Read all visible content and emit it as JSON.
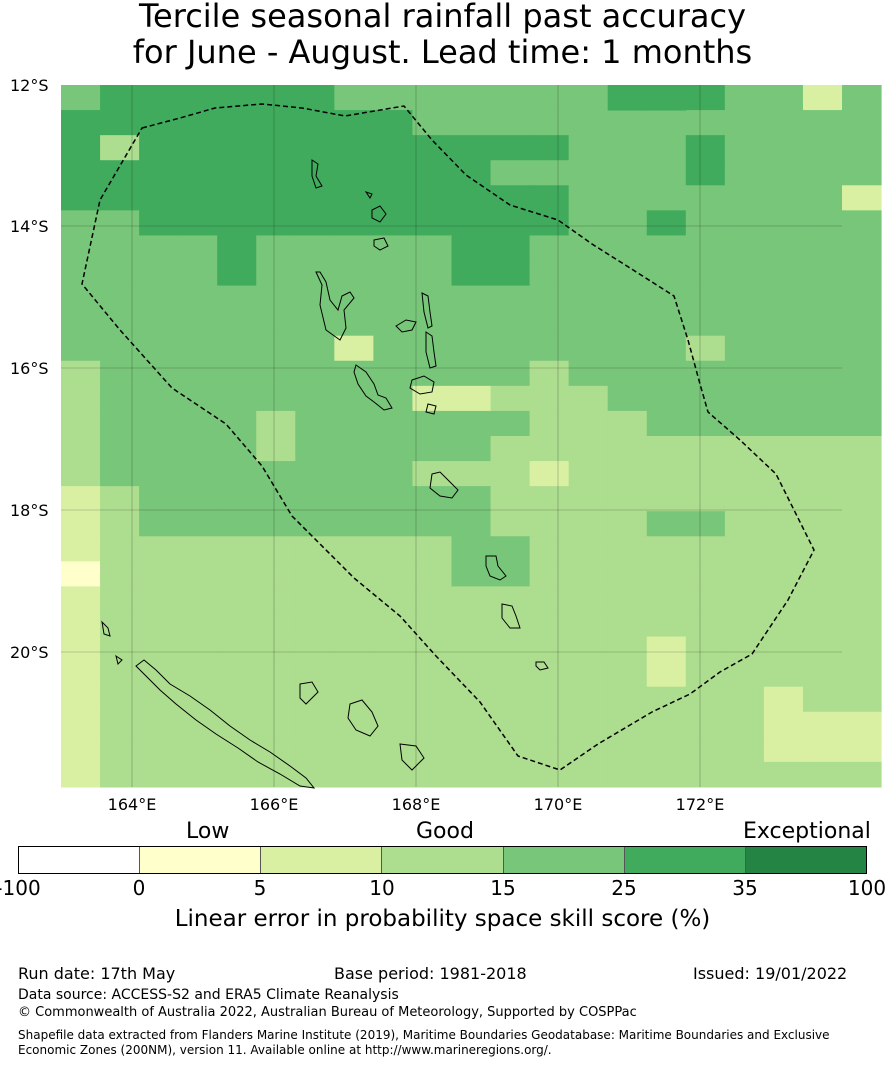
{
  "title": {
    "line1": "Tercile seasonal rainfall past accuracy",
    "line2": "for June - August. Lead time: 1 months"
  },
  "map": {
    "lat_labels": [
      "12°S",
      "14°S",
      "16°S",
      "18°S",
      "20°S"
    ],
    "lon_labels": [
      "164°E",
      "166°E",
      "168°E",
      "170°E",
      "172°E"
    ]
  },
  "colorbar": {
    "category_labels": [
      "Low",
      "Good",
      "Exceptional"
    ],
    "ticks": [
      "-100",
      "0",
      "5",
      "10",
      "15",
      "25",
      "35",
      "100"
    ],
    "colors": [
      "#ffffff",
      "#ffffcc",
      "#d9f0a3",
      "#addd8e",
      "#78c679",
      "#41ab5d",
      "#238443"
    ],
    "label": "Linear error in probability space skill score (%)"
  },
  "footer": {
    "run_date": "Run date: 17th May",
    "base_period": "Base period: 1981-2018",
    "issued": "Issued: 19/01/2022",
    "data_source": "Data source: ACCESS-S2 and ERA5 Climate Reanalysis",
    "copyright": "© Commonwealth of Australia 2022, Australian Bureau of Meteorology, Supported by COSPPac",
    "shapefile_line1": "Shapefile data extracted from Flanders Marine Institute (2019), Maritime Boundaries Geodatabase: Maritime Boundaries and Exclusive",
    "shapefile_line2": "Economic Zones (200NM), version 11. Available online at http://www.marineregions.org/."
  }
}
